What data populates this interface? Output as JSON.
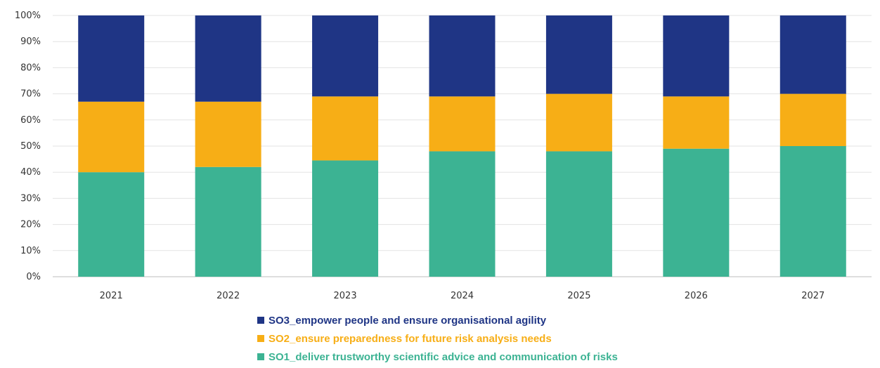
{
  "chart_data": {
    "type": "bar",
    "stacked": true,
    "percent": true,
    "categories": [
      "2021",
      "2022",
      "2023",
      "2024",
      "2025",
      "2026",
      "2027"
    ],
    "series": [
      {
        "name": "SO1_deliver trustworthy scientific advice and communication of risks",
        "color": "#3cb393",
        "values": [
          40,
          42,
          44.5,
          48,
          48,
          49,
          50
        ]
      },
      {
        "name": "SO2_ensure preparedness for future risk analysis needs",
        "color": "#f7ae16",
        "values": [
          27,
          25,
          24.5,
          21,
          22,
          20,
          20
        ]
      },
      {
        "name": "SO3_empower people and ensure organisational agility",
        "color": "#1f3585",
        "values": [
          33,
          33,
          31,
          31,
          30,
          31,
          30
        ]
      }
    ],
    "ylim": [
      0,
      100
    ],
    "yticks": [
      "0%",
      "10%",
      "20%",
      "30%",
      "40%",
      "50%",
      "60%",
      "70%",
      "80%",
      "90%",
      "100%"
    ],
    "grid": true,
    "legend_position": "bottom",
    "legend_order": [
      2,
      1,
      0
    ]
  }
}
